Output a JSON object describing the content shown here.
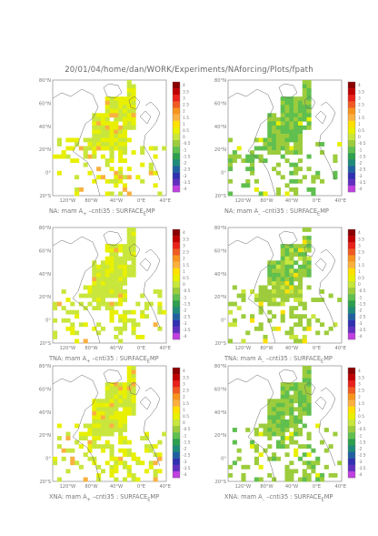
{
  "header": {
    "path": "20/01/04/home/dan/WORK/Experiments/NAforcing/Plots/fpath"
  },
  "chart_data": [
    {
      "type": "heatmap",
      "region": "NA",
      "caption_pre": "NA: mam A",
      "caption_sub": "+",
      "caption_post": " –cnti35 : SURFACE",
      "caption_sub2": "E",
      "caption_end": "MP",
      "lat_ticks": [
        "80°N",
        "60°N",
        "40°N",
        "20°N",
        "0°",
        "20°S"
      ],
      "lon_ticks": [
        "120°W",
        "80°W",
        "40°W",
        "0°E",
        "40°E"
      ],
      "colorbar": [
        "4",
        "3.5",
        "3",
        "2.5",
        "2",
        "1.5",
        "1",
        "0.5",
        "0",
        "-0.5",
        "-1",
        "-1.5",
        "-2",
        "-2.5",
        "-3",
        "-3.5",
        "-4"
      ],
      "dominant_value": 0.3,
      "field_note": "mostly weak positive anomaly over North Atlantic"
    },
    {
      "type": "heatmap",
      "region": "NA",
      "caption_pre": "NA: mam A",
      "caption_sub": "–",
      "caption_post": " –cnti35 : SURFACE",
      "caption_sub2": "E",
      "caption_end": "MP",
      "lat_ticks": [
        "80°N",
        "60°N",
        "40°N",
        "20°N",
        "0°",
        "20°S"
      ],
      "lon_ticks": [
        "120°W",
        "80°W",
        "40°W",
        "0°E",
        "40°E"
      ],
      "colorbar": [
        "4",
        "3.5",
        "3",
        "2.5",
        "2",
        "1.5",
        "1",
        "0.5",
        "0",
        "-0.5",
        "-1",
        "-1.5",
        "-2",
        "-2.5",
        "-3",
        "-3.5",
        "-4"
      ],
      "dominant_value": -0.7
    },
    {
      "type": "heatmap",
      "region": "TNA",
      "caption_pre": "TNA: mam A",
      "caption_sub": "+",
      "caption_post": " –cnti35 : SURFACE",
      "caption_sub2": "E",
      "caption_end": "MP",
      "lat_ticks": [
        "80°N",
        "60°N",
        "40°N",
        "20°N",
        "0°",
        "20°S"
      ],
      "lon_ticks": [
        "120°W",
        "80°W",
        "40°W",
        "0°E",
        "40°E"
      ],
      "colorbar": [
        "4",
        "3.5",
        "3",
        "2.5",
        "2",
        "1.5",
        "1",
        "0.5",
        "0",
        "-0.5",
        "-1",
        "-1.5",
        "-2",
        "-2.5",
        "-3",
        "-3.5",
        "-4"
      ],
      "dominant_value": 0.1
    },
    {
      "type": "heatmap",
      "region": "TNA",
      "caption_pre": "TNA: mam A",
      "caption_sub": "–",
      "caption_post": " –cnti35 : SURFACE",
      "caption_sub2": "E",
      "caption_end": "MP",
      "lat_ticks": [
        "80°N",
        "60°N",
        "40°N",
        "20°N",
        "0°",
        "20°S"
      ],
      "lon_ticks": [
        "120°W",
        "80°W",
        "40°W",
        "0°E",
        "40°E"
      ],
      "colorbar": [
        "4",
        "3.5",
        "3",
        "2.5",
        "2",
        "1.5",
        "1",
        "0.5",
        "0",
        "-0.5",
        "-1",
        "-1.5",
        "-2",
        "-2.5",
        "-3",
        "-3.5",
        "-4"
      ],
      "dominant_value": -0.4
    },
    {
      "type": "heatmap",
      "region": "XNA",
      "caption_pre": "XNA: mam A",
      "caption_sub": "+",
      "caption_post": " –cnti35 : SURFACE",
      "caption_sub2": "E",
      "caption_end": "MP",
      "lat_ticks": [
        "80°N",
        "60°N",
        "40°N",
        "20°N",
        "0°",
        "20°S"
      ],
      "lon_ticks": [
        "120°W",
        "80°W",
        "40°W",
        "0°E",
        "40°E"
      ],
      "colorbar": [
        "4",
        "3.5",
        "3",
        "2.5",
        "2",
        "1.5",
        "1",
        "0.5",
        "0",
        "-0.5",
        "-1",
        "-1.5",
        "-2",
        "-2.5",
        "-3",
        "-3.5",
        "-4"
      ],
      "dominant_value": 0.2
    },
    {
      "type": "heatmap",
      "region": "XNA",
      "caption_pre": "XNA: mam A",
      "caption_sub": "–",
      "caption_post": " –cnti35 : SURFACE",
      "caption_sub2": "E",
      "caption_end": "MP",
      "lat_ticks": [
        "80°N",
        "60°N",
        "40°N",
        "20°N",
        "0°",
        "20°S"
      ],
      "lon_ticks": [
        "120°W",
        "80°W",
        "40°W",
        "0°E",
        "40°E"
      ],
      "colorbar": [
        "4",
        "3.5",
        "3",
        "2.5",
        "2",
        "1.5",
        "1",
        "0.5",
        "0",
        "-0.5",
        "-1",
        "-1.5",
        "-2",
        "-2.5",
        "-3",
        "-3.5",
        "-4"
      ],
      "dominant_value": -0.6
    }
  ],
  "colormap": [
    "#8b0000",
    "#c00000",
    "#e8221b",
    "#f15a24",
    "#f7941d",
    "#fbb040",
    "#ffe000",
    "#e8f000",
    "#c8e63c",
    "#9ccc3c",
    "#5fbf4f",
    "#2e9e4f",
    "#1f8a7a",
    "#2060a0",
    "#3030b0",
    "#6030c0",
    "#c040e0"
  ]
}
